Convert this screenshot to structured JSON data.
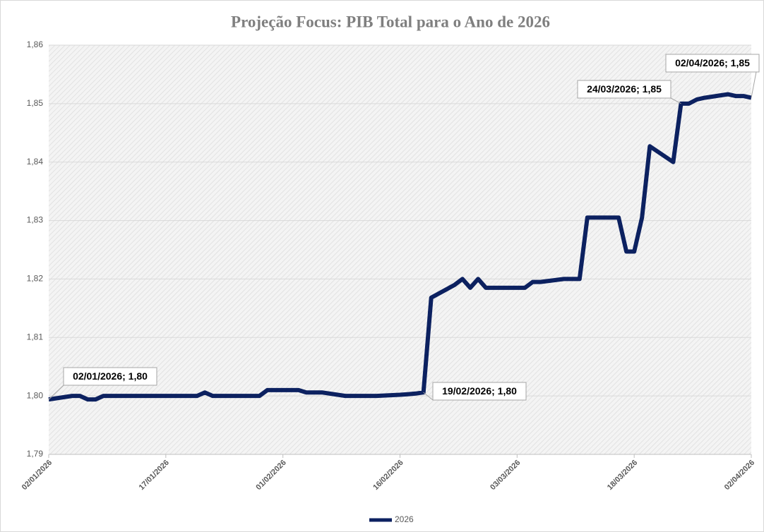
{
  "chart_data": {
    "type": "line",
    "title": "Projeção Focus: PIB Total para o Ano de 2026",
    "x": [
      "02/01/2026",
      "05/01/2026",
      "06/01/2026",
      "07/01/2026",
      "08/01/2026",
      "09/01/2026",
      "12/01/2026",
      "13/01/2026",
      "14/01/2026",
      "15/01/2026",
      "16/01/2026",
      "19/01/2026",
      "20/01/2026",
      "21/01/2026",
      "22/01/2026",
      "23/01/2026",
      "26/01/2026",
      "27/01/2026",
      "28/01/2026",
      "29/01/2026",
      "30/01/2026",
      "02/02/2026",
      "03/02/2026",
      "04/02/2026",
      "05/02/2026",
      "06/02/2026",
      "09/02/2026",
      "10/02/2026",
      "11/02/2026",
      "12/02/2026",
      "13/02/2026",
      "16/02/2026",
      "17/02/2026",
      "18/02/2026",
      "19/02/2026",
      "20/02/2026",
      "23/02/2026",
      "24/02/2026",
      "25/02/2026",
      "26/02/2026",
      "27/02/2026",
      "02/03/2026",
      "03/03/2026",
      "04/03/2026",
      "05/03/2026",
      "06/03/2026",
      "09/03/2026",
      "10/03/2026",
      "11/03/2026",
      "12/03/2026",
      "13/03/2026",
      "16/03/2026",
      "17/03/2026",
      "18/03/2026",
      "19/03/2026",
      "20/03/2026",
      "23/03/2026",
      "24/03/2026",
      "25/03/2026",
      "26/03/2026",
      "27/03/2026",
      "30/03/2026",
      "31/03/2026",
      "01/04/2026",
      "02/04/2026"
    ],
    "series": [
      {
        "name": "2026",
        "color": "#0c2160",
        "values": [
          1.7994,
          1.8,
          1.8,
          1.7994,
          1.7994,
          1.8,
          1.8,
          1.8,
          1.8,
          1.8,
          1.8,
          1.8,
          1.8,
          1.8,
          1.8006,
          1.8,
          1.8,
          1.8,
          1.8,
          1.8,
          1.801,
          1.801,
          1.801,
          1.8006,
          1.8006,
          1.8006,
          1.8,
          1.8,
          1.8,
          1.8,
          1.8,
          1.8002,
          1.8003,
          1.8004,
          1.8006,
          1.8168,
          1.819,
          1.82,
          1.8185,
          1.82,
          1.8185,
          1.8185,
          1.8185,
          1.8185,
          1.8195,
          1.8195,
          1.82,
          1.82,
          1.82,
          1.8305,
          1.8305,
          1.8305,
          1.8247,
          1.8247,
          1.8305,
          1.8427,
          1.84,
          1.85,
          1.85,
          1.8507,
          1.851,
          1.8516,
          1.8513,
          1.8513,
          1.851
        ]
      }
    ],
    "xlim": [
      "02/01/2026",
      "02/04/2026"
    ],
    "xticks": [
      "02/01/2026",
      "17/01/2026",
      "01/02/2026",
      "16/02/2026",
      "03/03/2026",
      "18/03/2026",
      "02/04/2026"
    ],
    "ylim": [
      1.79,
      1.86
    ],
    "yticks": [
      {
        "value": 1.79,
        "label": "1,79"
      },
      {
        "value": 1.8,
        "label": "1,80"
      },
      {
        "value": 1.81,
        "label": "1,81"
      },
      {
        "value": 1.82,
        "label": "1,82"
      },
      {
        "value": 1.83,
        "label": "1,83"
      },
      {
        "value": 1.84,
        "label": "1,84"
      },
      {
        "value": 1.85,
        "label": "1,85"
      },
      {
        "value": 1.86,
        "label": "1,86"
      }
    ],
    "grid": true,
    "legend": "bottom",
    "annotations": [
      "02/01/2026; 1,80",
      "19/02/2026; 1,80",
      "24/03/2026; 1,85",
      "02/04/2026; 1,85"
    ]
  }
}
